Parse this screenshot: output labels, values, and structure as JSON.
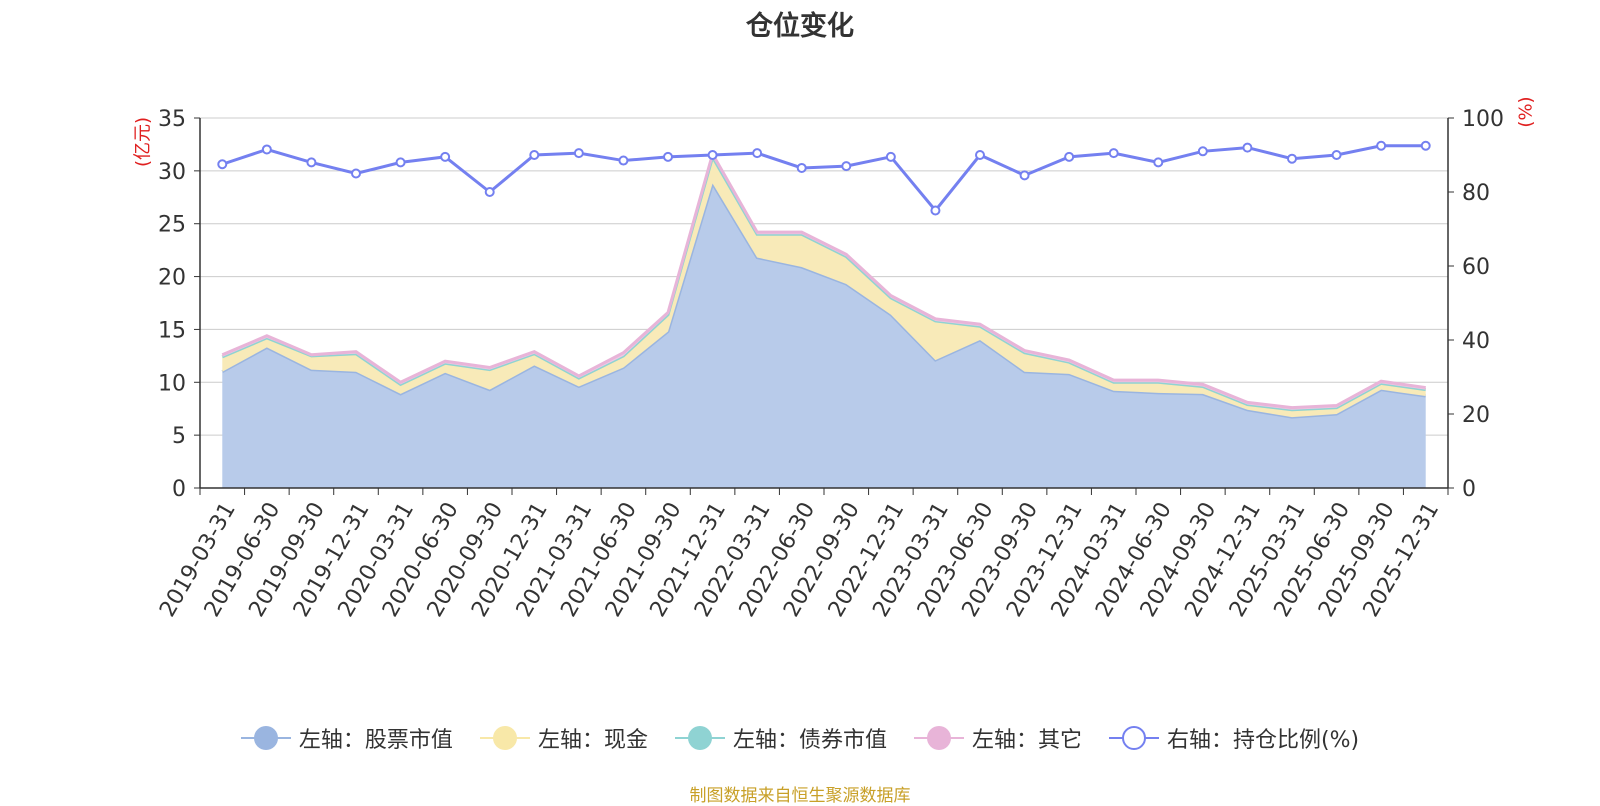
{
  "chart_data": {
    "type": "area",
    "title": "仓位变化",
    "left_axis_unit": "(亿元)",
    "right_axis_unit": "(%)",
    "ylim_left": [
      0,
      35
    ],
    "ylim_right": [
      0,
      100
    ],
    "yticks_left": [
      0,
      5,
      10,
      15,
      20,
      25,
      30,
      35
    ],
    "yticks_right": [
      0,
      20,
      40,
      60,
      80,
      100
    ],
    "categories": [
      "2019-03-31",
      "2019-06-30",
      "2019-09-30",
      "2019-12-31",
      "2020-03-31",
      "2020-06-30",
      "2020-09-30",
      "2020-12-31",
      "2021-03-31",
      "2021-06-30",
      "2021-09-30",
      "2021-12-31",
      "2022-03-31",
      "2022-06-30",
      "2022-09-30",
      "2022-12-31",
      "2023-03-31",
      "2023-06-30",
      "2023-09-30",
      "2023-12-31",
      "2024-03-31",
      "2024-06-30",
      "2024-09-30",
      "2024-12-31",
      "2025-03-31",
      "2025-06-30",
      "2025-09-30",
      "2025-12-31"
    ],
    "series": [
      {
        "name": "左轴：股票市值",
        "axis": "left",
        "stack": true,
        "color": "#9ab5e0",
        "fill": "#b8cbea",
        "values": [
          11.0,
          13.3,
          11.2,
          11.0,
          8.9,
          10.9,
          9.3,
          11.6,
          9.6,
          11.4,
          14.8,
          28.8,
          21.8,
          20.9,
          19.3,
          16.4,
          12.1,
          14.0,
          11.0,
          10.8,
          9.2,
          9.0,
          8.9,
          7.4,
          6.7,
          7.0,
          9.3,
          8.7
        ]
      },
      {
        "name": "左轴：现金",
        "axis": "left",
        "stack": true,
        "color": "#f5e4a0",
        "fill": "#f8eab8",
        "values": [
          1.4,
          0.9,
          1.3,
          1.7,
          0.9,
          0.9,
          1.9,
          1.1,
          0.8,
          1.1,
          1.6,
          2.5,
          2.2,
          3.1,
          2.6,
          1.6,
          3.7,
          1.3,
          1.8,
          1.1,
          0.8,
          1.0,
          0.7,
          0.5,
          0.7,
          0.6,
          0.6,
          0.6
        ]
      },
      {
        "name": "左轴：债券市值",
        "axis": "left",
        "stack": true,
        "color": "#8fd3d3",
        "fill": "#a8dddd",
        "values": [
          0,
          0,
          0,
          0,
          0,
          0,
          0,
          0,
          0,
          0,
          0,
          0,
          0,
          0,
          0,
          0,
          0,
          0,
          0,
          0,
          0,
          0,
          0,
          0,
          0,
          0,
          0,
          0
        ]
      },
      {
        "name": "左轴：其它",
        "axis": "left",
        "stack": true,
        "color": "#e8b4d8",
        "fill": "#f0c8e4",
        "values": [
          0.2,
          0.2,
          0.1,
          0.2,
          0.2,
          0.2,
          0.2,
          0.2,
          0.2,
          0.3,
          0.2,
          0.3,
          0.2,
          0.2,
          0.2,
          0.2,
          0.2,
          0.2,
          0.2,
          0.2,
          0.2,
          0.2,
          0.2,
          0.2,
          0.2,
          0.2,
          0.2,
          0.2
        ]
      },
      {
        "name": "右轴：持仓比例(%)",
        "axis": "right",
        "stack": false,
        "color": "#7480f0",
        "fill": "none",
        "values": [
          87.5,
          91.5,
          88.0,
          85.0,
          88.0,
          89.5,
          80.0,
          90.0,
          90.5,
          88.5,
          89.5,
          90.0,
          90.5,
          86.5,
          87.0,
          89.5,
          75.0,
          90.0,
          84.5,
          89.5,
          90.5,
          88.0,
          91.0,
          92.0,
          89.0,
          90.0,
          92.5,
          92.5
        ]
      }
    ]
  },
  "legend": [
    {
      "label": "左轴：股票市值",
      "color": "#9ab5e0",
      "hollow": false
    },
    {
      "label": "左轴：现金",
      "color": "#f8e8a8",
      "hollow": false
    },
    {
      "label": "左轴：债券市值",
      "color": "#8fd3d3",
      "hollow": false
    },
    {
      "label": "左轴：其它",
      "color": "#e8b4d8",
      "hollow": false
    },
    {
      "label": "右轴：持仓比例(%)",
      "color": "#7480f0",
      "hollow": true
    }
  ],
  "source_note": "制图数据来自恒生聚源数据库"
}
